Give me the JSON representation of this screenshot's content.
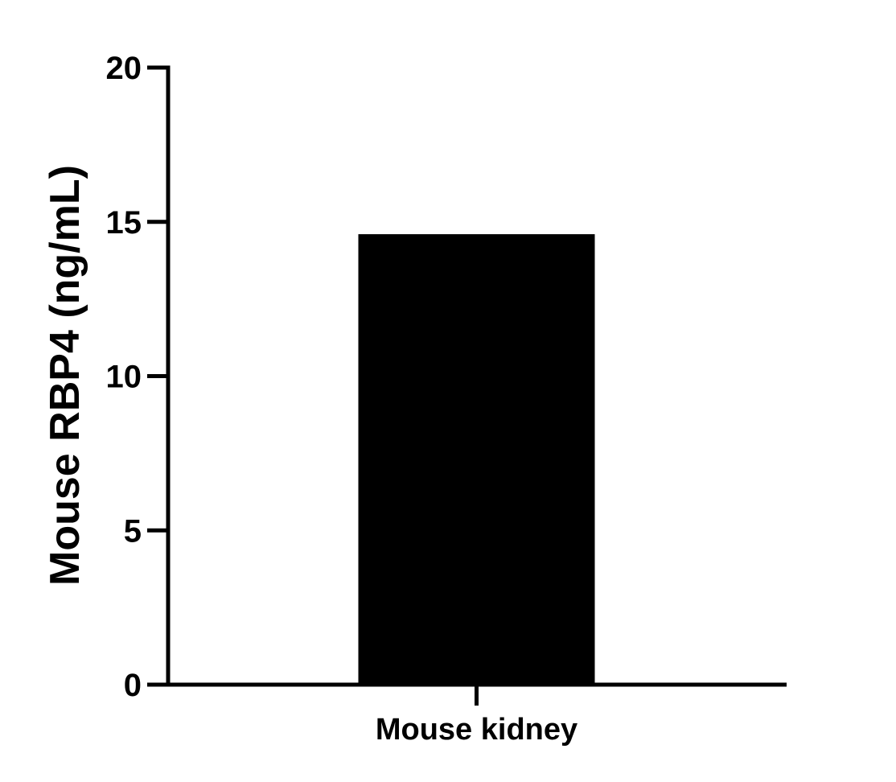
{
  "chart_data": {
    "type": "bar",
    "categories": [
      "Mouse kidney"
    ],
    "values": [
      14.6
    ],
    "title": "",
    "xlabel": "",
    "ylabel": "Mouse RBP4 (ng/mL)",
    "ylim": [
      0,
      20
    ],
    "yticks": [
      0,
      5,
      10,
      15,
      20
    ],
    "ytick_labels": [
      "0",
      "5",
      "10",
      "15",
      "20"
    ],
    "grid": false,
    "legend": "none",
    "colors": {
      "bar": "#000000",
      "axis": "#000000",
      "background": "#ffffff"
    }
  }
}
